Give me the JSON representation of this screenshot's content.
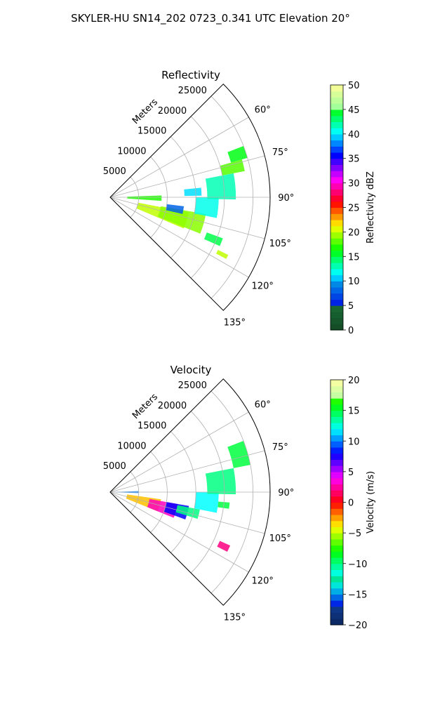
{
  "figure": {
    "suptitle": "SKYLER-HU  SN14_202  0723_0.341 UTC Elevation 20°"
  },
  "chart_data": [
    {
      "type": "polar-sector",
      "title": "Reflectivity",
      "radial_label": "Meters",
      "theta_range_deg": [
        45,
        135
      ],
      "theta_ticks": [
        {
          "value": 60,
          "label": "60°"
        },
        {
          "value": 75,
          "label": "75°"
        },
        {
          "value": 90,
          "label": "90°"
        },
        {
          "value": 105,
          "label": "105°"
        },
        {
          "value": 120,
          "label": "120°"
        },
        {
          "value": 135,
          "label": "135°"
        }
      ],
      "r_range": [
        0,
        28000
      ],
      "r_ticks": [
        {
          "value": 5000,
          "label": "5000"
        },
        {
          "value": 10000,
          "label": "10000"
        },
        {
          "value": 15000,
          "label": "15000"
        },
        {
          "value": 20000,
          "label": "20000"
        },
        {
          "value": 25000,
          "label": "25000"
        }
      ],
      "grid": true,
      "colorbar": {
        "label": "Reflectivity dBZ",
        "range": [
          0,
          50
        ],
        "ticks": [
          "0",
          "5",
          "10",
          "15",
          "20",
          "25",
          "30",
          "35",
          "40",
          "45",
          "50"
        ]
      },
      "echoes": [
        {
          "r": [
            3000,
            9000
          ],
          "theta": [
            88,
            94
          ],
          "value": 17
        },
        {
          "r": [
            5000,
            14000
          ],
          "theta": [
            101,
            113
          ],
          "value": 20
        },
        {
          "r": [
            9000,
            17000
          ],
          "theta": [
            100,
            112
          ],
          "value": 19
        },
        {
          "r": [
            10000,
            13000
          ],
          "theta": [
            97,
            103
          ],
          "value": 8
        },
        {
          "r": [
            15000,
            19000
          ],
          "theta": [
            90,
            101
          ],
          "value": 12
        },
        {
          "r": [
            17000,
            22000
          ],
          "theta": [
            79,
            91
          ],
          "value": 13
        },
        {
          "r": [
            22000,
            25000
          ],
          "theta": [
            69,
            74
          ],
          "value": 16
        },
        {
          "r": [
            20000,
            24000
          ],
          "theta": [
            74,
            79
          ],
          "value": 18
        },
        {
          "r": [
            13000,
            16000
          ],
          "theta": [
            84,
            89
          ],
          "value": 11
        },
        {
          "r": [
            18000,
            21000
          ],
          "theta": [
            110,
            114
          ],
          "value": 15
        },
        {
          "r": [
            21000,
            23000
          ],
          "theta": [
            116,
            118
          ],
          "value": 20
        }
      ]
    },
    {
      "type": "polar-sector",
      "title": "Velocity",
      "radial_label": "Meters",
      "theta_range_deg": [
        45,
        135
      ],
      "theta_ticks": [
        {
          "value": 60,
          "label": "60°"
        },
        {
          "value": 75,
          "label": "75°"
        },
        {
          "value": 90,
          "label": "90°"
        },
        {
          "value": 105,
          "label": "105°"
        },
        {
          "value": 120,
          "label": "120°"
        },
        {
          "value": 135,
          "label": "135°"
        }
      ],
      "r_range": [
        0,
        28000
      ],
      "r_ticks": [
        {
          "value": 5000,
          "label": "5000"
        },
        {
          "value": 10000,
          "label": "10000"
        },
        {
          "value": 15000,
          "label": "15000"
        },
        {
          "value": 20000,
          "label": "20000"
        },
        {
          "value": 25000,
          "label": "25000"
        }
      ],
      "grid": true,
      "colorbar": {
        "label": "Velocity (m/s)",
        "range": [
          -20,
          20
        ],
        "ticks": [
          "−20",
          "−15",
          "−10",
          "−5",
          "0",
          "5",
          "10",
          "15",
          "20"
        ]
      },
      "echoes": [
        {
          "r": [
            1000,
            5000
          ],
          "theta": [
            88,
            92
          ],
          "value": 10
        },
        {
          "r": [
            3000,
            9000
          ],
          "theta": [
            98,
            112
          ],
          "value": -3
        },
        {
          "r": [
            7000,
            12000
          ],
          "theta": [
            100,
            112
          ],
          "value": 3
        },
        {
          "r": [
            10000,
            14000
          ],
          "theta": [
            100,
            110
          ],
          "value": 8
        },
        {
          "r": [
            12000,
            16000
          ],
          "theta": [
            101,
            107
          ],
          "value": 14
        },
        {
          "r": [
            15000,
            19000
          ],
          "theta": [
            90,
            101
          ],
          "value": -12
        },
        {
          "r": [
            17000,
            22000
          ],
          "theta": [
            79,
            91
          ],
          "value": -10
        },
        {
          "r": [
            22000,
            25000
          ],
          "theta": [
            69,
            79
          ],
          "value": -9
        },
        {
          "r": [
            19000,
            21000
          ],
          "theta": [
            95,
            98
          ],
          "value": 15
        },
        {
          "r": [
            21000,
            23000
          ],
          "theta": [
            114,
            117
          ],
          "value": 2
        }
      ]
    }
  ]
}
